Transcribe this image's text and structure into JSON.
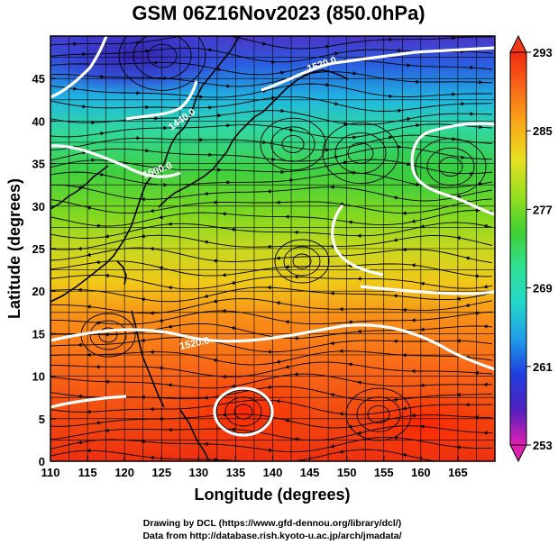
{
  "title": "GSM 06Z16Nov2023 (850.0hPa)",
  "credits": {
    "line1": "Drawing by DCL (https://www.gfd-dennou.org/library/dcl/)",
    "line2": "Data from http://database.rish.kyoto-u.ac.jp/arch/jmadata/"
  },
  "chart_data": {
    "type": "heatmap",
    "title": "GSM 06Z16Nov2023 (850.0hPa)",
    "xlabel": "Longitude (degrees)",
    "ylabel": "Latitude  (degrees)",
    "xlim": [
      110,
      170
    ],
    "ylim": [
      0,
      50
    ],
    "x_ticks": [
      "110",
      "115",
      "120",
      "125",
      "130",
      "135",
      "140",
      "145",
      "150",
      "155",
      "160",
      "165"
    ],
    "y_ticks": [
      "0",
      "5",
      "10",
      "15",
      "20",
      "25",
      "30",
      "35",
      "40",
      "45"
    ],
    "grid": true,
    "colorbar": {
      "min": 253,
      "max": 293,
      "ticks": [
        "293",
        "285",
        "277",
        "269",
        "261",
        "253"
      ],
      "colors": [
        "#e020b0",
        "#5020c0",
        "#1f3fe0",
        "#1f9fe8",
        "#24d8c8",
        "#30e090",
        "#40d030",
        "#98e020",
        "#e8e020",
        "#f8a818",
        "#f86818",
        "#f02a10"
      ]
    },
    "contours": {
      "field": "geopotential height (m)",
      "levels_labeled": [
        "1440.0",
        "1500.0",
        "1520.0"
      ]
    },
    "overlays": [
      "streamlines",
      "coastlines"
    ],
    "approx_field_samples": [
      {
        "lon": 120,
        "lat": 47,
        "value": 261
      },
      {
        "lon": 140,
        "lat": 45,
        "value": 273
      },
      {
        "lon": 155,
        "lat": 40,
        "value": 279
      },
      {
        "lon": 125,
        "lat": 35,
        "value": 275
      },
      {
        "lon": 160,
        "lat": 30,
        "value": 281
      },
      {
        "lon": 140,
        "lat": 25,
        "value": 285
      },
      {
        "lon": 140,
        "lat": 15,
        "value": 289
      },
      {
        "lon": 135,
        "lat": 5,
        "value": 291
      },
      {
        "lon": 160,
        "lat": 5,
        "value": 291
      }
    ]
  }
}
